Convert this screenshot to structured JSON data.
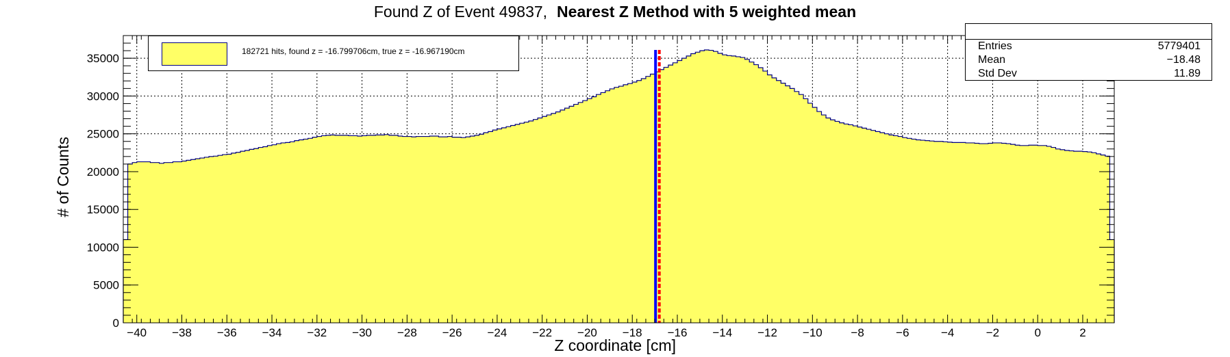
{
  "title": {
    "main": "Found Z of Event 49837,",
    "method": "Nearest Z Method with 5 weighted mean"
  },
  "legend": {
    "entry": "182721 hits, found z = -16.799706cm, true z = -16.967190cm"
  },
  "stats": {
    "rows": [
      {
        "label": "Entries",
        "value": "5779401"
      },
      {
        "label": "Mean",
        "value": "−18.48"
      },
      {
        "label": "Std Dev",
        "value": "11.89"
      }
    ]
  },
  "chart_data": {
    "type": "area",
    "step_histogram": true,
    "xlabel": "Z coordinate [cm]",
    "ylabel": "# of Counts",
    "xlim": [
      -40.6,
      3.4
    ],
    "ylim": [
      0,
      38000
    ],
    "x_ticks": [
      "−40",
      "−38",
      "−36",
      "−34",
      "−32",
      "−30",
      "−28",
      "−26",
      "−24",
      "−22",
      "−20",
      "−18",
      "−16",
      "−14",
      "−12",
      "−10",
      "−8",
      "−6",
      "−4",
      "−2",
      "0",
      "2"
    ],
    "y_ticks": [
      "0",
      "5000",
      "10000",
      "15000",
      "20000",
      "25000",
      "30000",
      "35000"
    ],
    "grid": true,
    "fill_color": "#ffff66",
    "line_color": "#000080",
    "bin_width": 0.2,
    "x_start": -40.6,
    "values": [
      11000,
      21000,
      21200,
      21300,
      21300,
      21300,
      21200,
      21200,
      21100,
      21200,
      21200,
      21300,
      21300,
      21400,
      21500,
      21600,
      21700,
      21800,
      21900,
      22000,
      22050,
      22150,
      22250,
      22300,
      22450,
      22550,
      22700,
      22800,
      22950,
      23050,
      23200,
      23300,
      23450,
      23550,
      23700,
      23800,
      23850,
      23950,
      24100,
      24200,
      24300,
      24400,
      24550,
      24650,
      24750,
      24800,
      24850,
      24800,
      24800,
      24800,
      24750,
      24750,
      24700,
      24750,
      24800,
      24800,
      24850,
      24850,
      24900,
      24800,
      24800,
      24700,
      24650,
      24650,
      24600,
      24650,
      24650,
      24650,
      24700,
      24700,
      24600,
      24600,
      24650,
      24550,
      24550,
      24500,
      24600,
      24700,
      24800,
      24950,
      25150,
      25300,
      25500,
      25650,
      25800,
      25950,
      26100,
      26250,
      26400,
      26550,
      26700,
      26900,
      27100,
      27300,
      27500,
      27700,
      27900,
      28150,
      28400,
      28650,
      28900,
      29150,
      29400,
      29650,
      29900,
      30200,
      30450,
      30700,
      30950,
      31150,
      31300,
      31500,
      31650,
      31850,
      32050,
      32300,
      32600,
      32900,
      33200,
      33500,
      33800,
      34100,
      34400,
      34700,
      35000,
      35300,
      35600,
      35800,
      36000,
      36100,
      36050,
      35900,
      35650,
      35450,
      35350,
      35300,
      35200,
      35100,
      34850,
      34500,
      34150,
      33750,
      33300,
      32800,
      32400,
      32050,
      31700,
      31350,
      31000,
      30600,
      30200,
      29650,
      29050,
      28500,
      27950,
      27500,
      27100,
      26850,
      26650,
      26450,
      26300,
      26200,
      26050,
      25900,
      25750,
      25600,
      25450,
      25300,
      25150,
      25000,
      24850,
      24750,
      24650,
      24500,
      24400,
      24300,
      24200,
      24150,
      24100,
      24050,
      24000,
      24000,
      23950,
      23900,
      23850,
      23850,
      23850,
      23800,
      23800,
      23750,
      23700,
      23700,
      23750,
      23800,
      23800,
      23750,
      23700,
      23600,
      23500,
      23450,
      23450,
      23500,
      23500,
      23450,
      23450,
      23350,
      23200,
      23000,
      22900,
      22800,
      22750,
      22700,
      22700,
      22650,
      22600,
      22500,
      22350,
      22200,
      22050,
      11000
    ],
    "markers": [
      {
        "name": "found z",
        "x": -16.799706,
        "color": "#ff0000",
        "style": "dashed"
      },
      {
        "name": "true z",
        "x": -16.96719,
        "color": "#0000ff",
        "style": "solid"
      }
    ]
  }
}
